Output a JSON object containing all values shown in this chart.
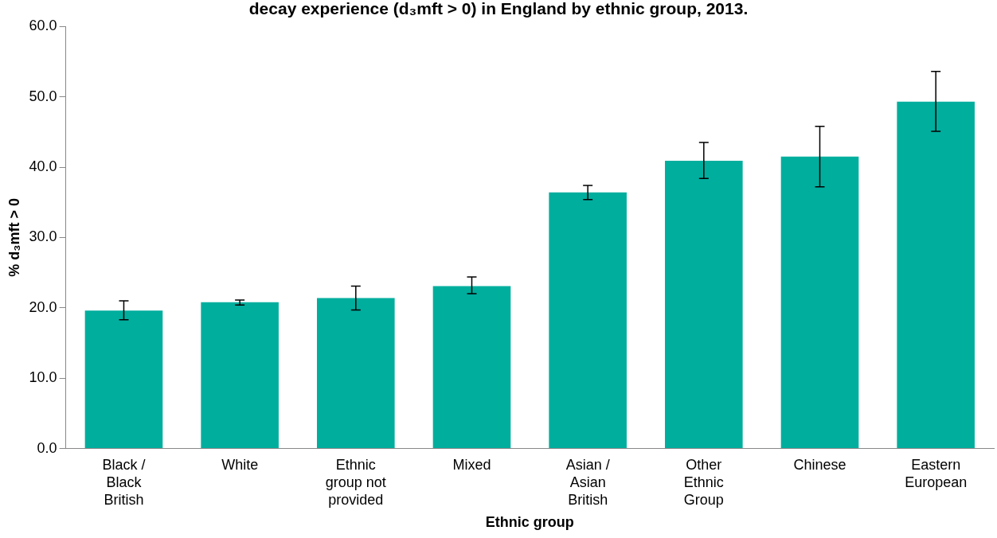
{
  "chart_data": {
    "type": "bar",
    "title": "decay experience (d₃mft > 0) in England by ethnic group, 2013.",
    "xlabel": "Ethnic group",
    "ylabel": "% d₃mft > 0",
    "categories": [
      "Black / Black British",
      "White",
      "Ethnic group not provided",
      "Mixed",
      "Asian / Asian British",
      "Other Ethnic Group",
      "Chinese",
      "Eastern European"
    ],
    "values": [
      19.6,
      20.8,
      21.4,
      23.1,
      36.4,
      40.9,
      41.5,
      49.3
    ],
    "errors": [
      [
        18.3,
        21.0
      ],
      [
        20.4,
        21.1
      ],
      [
        19.7,
        23.1
      ],
      [
        22.0,
        24.4
      ],
      [
        35.4,
        37.4
      ],
      [
        38.4,
        43.5
      ],
      [
        37.2,
        45.8
      ],
      [
        45.1,
        53.6
      ]
    ],
    "color": "#00ae9e",
    "ylim": [
      0,
      60
    ],
    "yticks": [
      {
        "value": 0,
        "label": "0.0"
      },
      {
        "value": 10,
        "label": "10.0"
      },
      {
        "value": 20,
        "label": "20.0"
      },
      {
        "value": 30,
        "label": "30.0"
      },
      {
        "value": 40,
        "label": "40.0"
      },
      {
        "value": 50,
        "label": "50.0"
      },
      {
        "value": 60,
        "label": "60.0"
      }
    ],
    "grid": false,
    "legend": false
  }
}
